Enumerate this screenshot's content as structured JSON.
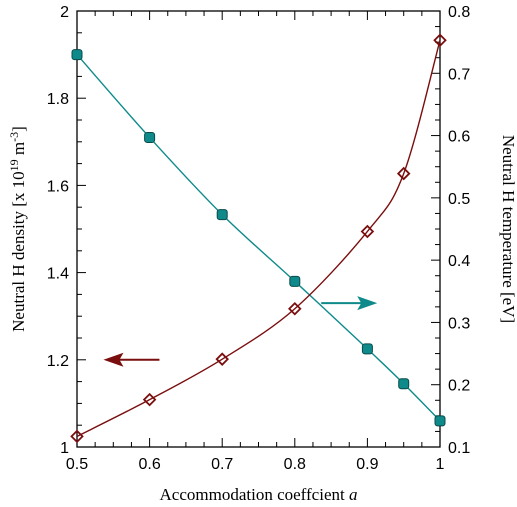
{
  "chart_data": {
    "type": "line",
    "xlabel": "Accommodation coeffcient",
    "xlabel_symbol": "a",
    "ylabel_left": "Neutral H density [x 10",
    "ylabel_left_exp1": "19",
    "ylabel_left_mid": " m",
    "ylabel_left_exp2": "-3",
    "ylabel_left_end": "]",
    "ylabel_right": "Neutral H temperature [eV]",
    "xlim": [
      0.5,
      1.0
    ],
    "ylim_left": [
      1.0,
      2.0
    ],
    "ylim_right": [
      0.1,
      0.8
    ],
    "x_ticks": [
      "0.5",
      "0.6",
      "0.7",
      "0.8",
      "0.9",
      "1"
    ],
    "x_tick_values": [
      0.5,
      0.6,
      0.7,
      0.8,
      0.9,
      1.0
    ],
    "y_left_ticks": [
      "1",
      "1.2",
      "1.4",
      "1.6",
      "1.8",
      "2"
    ],
    "y_left_tick_values": [
      1.0,
      1.2,
      1.4,
      1.6,
      1.8,
      2.0
    ],
    "y_right_ticks": [
      "0.1",
      "0.2",
      "0.3",
      "0.4",
      "0.5",
      "0.6",
      "0.7",
      "0.8"
    ],
    "y_right_tick_values": [
      0.1,
      0.2,
      0.3,
      0.4,
      0.5,
      0.6,
      0.7,
      0.8
    ],
    "grid": false,
    "legend": "none",
    "series": [
      {
        "axis": "left",
        "marker": "square",
        "color": "#0e8a8a",
        "x": [
          0.5,
          0.6,
          0.7,
          0.8,
          0.9,
          0.95,
          1.0
        ],
        "y": [
          1.9,
          1.71,
          1.533,
          1.38,
          1.225,
          1.145,
          1.06
        ]
      },
      {
        "axis": "right",
        "marker": "diamond",
        "color": "#7a0e0e",
        "x": [
          0.5,
          0.6,
          0.7,
          0.8,
          0.9,
          0.95,
          1.0
        ],
        "y": [
          0.117,
          0.176,
          0.241,
          0.322,
          0.446,
          0.539,
          0.753
        ]
      }
    ],
    "annotations": [
      {
        "type": "arrow",
        "direction": "left",
        "color": "#7a0e0e",
        "points_to": "left axis",
        "at": {
          "x": 0.575,
          "y": 1.2
        }
      },
      {
        "type": "arrow",
        "direction": "right",
        "color": "#0e8a8a",
        "points_to": "right axis",
        "at": {
          "x": 0.875,
          "y": 1.33
        }
      }
    ]
  }
}
